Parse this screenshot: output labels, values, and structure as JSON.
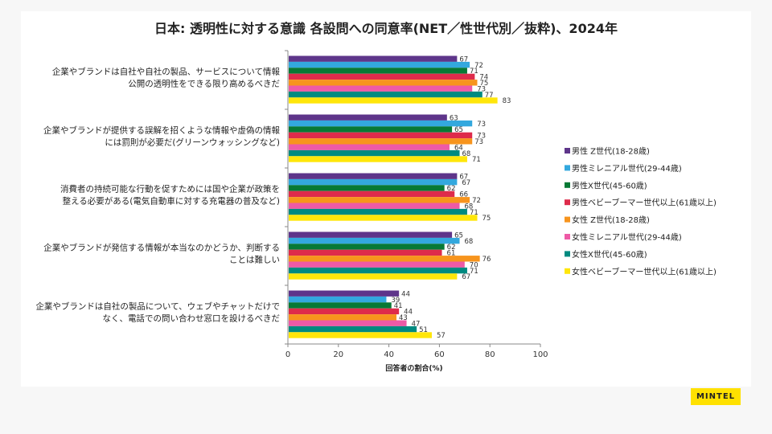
{
  "chart_data": {
    "type": "bar",
    "orientation": "horizontal",
    "title": "日本: 透明性に対する意識 各設問への同意率(NET／性世代別／抜粋)、2024年",
    "xlabel": "回答者の割合(%)",
    "ylabel": "",
    "xlim": [
      0,
      100
    ],
    "xticks": [
      "0",
      "20",
      "40",
      "60",
      "80",
      "100"
    ],
    "legend_position": "right",
    "categories": [
      [
        "企業やブランドは自社や自社の製品、サービスについて情報",
        "公開の透明性をできる限り高めるべきだ"
      ],
      [
        "企業やブランドが提供する誤解を招くような情報や虚偽の情報",
        "には罰則が必要だ(グリーンウォッシングなど)"
      ],
      [
        "消費者の持続可能な行動を促すためには国や企業が政策を",
        "整える必要がある(電気自動車に対する充電器の普及など)"
      ],
      [
        "企業やブランドが発信する情報が本当なのかどうか、判断する",
        "ことは難しい"
      ],
      [
        "企業やブランドは自社の製品について、ウェブやチャットだけで",
        "なく、電話での問い合わせ窓口を設けるべきだ"
      ]
    ],
    "series": [
      {
        "name": "男性 Z世代(18-28歳)",
        "color": "#5e358a",
        "values": [
          67,
          63,
          67,
          65,
          44
        ]
      },
      {
        "name": "男性ミレニアル世代(29-44歳)",
        "color": "#33a8de",
        "values": [
          72,
          73,
          67,
          68,
          39
        ]
      },
      {
        "name": "男性X世代(45-60歳)",
        "color": "#077935",
        "values": [
          71,
          65,
          62,
          62,
          41
        ]
      },
      {
        "name": "男性ベビーブーマー世代以上(61歳以上)",
        "color": "#de2b4b",
        "values": [
          74,
          73,
          66,
          61,
          44
        ]
      },
      {
        "name": "女性 Z世代(18-28歳)",
        "color": "#f7941d",
        "values": [
          75,
          73,
          72,
          76,
          43
        ]
      },
      {
        "name": "女性ミレニアル世代(29-44歳)",
        "color": "#ee5aa6",
        "values": [
          73,
          64,
          68,
          70,
          47
        ]
      },
      {
        "name": "女性X世代(45-60歳)",
        "color": "#008a80",
        "values": [
          77,
          68,
          71,
          71,
          51
        ]
      },
      {
        "name": "女性ベビーブーマー世代以上(61歳以上)",
        "color": "#ffe60a",
        "values": [
          83,
          71,
          75,
          67,
          57
        ]
      }
    ]
  },
  "brand": "MINTEL"
}
